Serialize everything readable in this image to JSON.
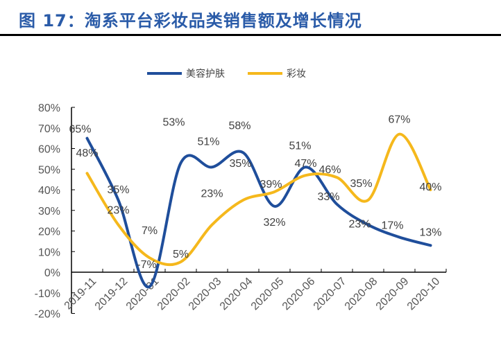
{
  "title": "图 17：淘系平台彩妆品类销售额及增长情况",
  "chart_data": {
    "type": "line",
    "title": "",
    "xlabel": "",
    "ylabel": "",
    "smooth": true,
    "categories": [
      "2019-11",
      "2019-12",
      "2020-01",
      "2020-02",
      "2020-03",
      "2020-04",
      "2020-05",
      "2020-06",
      "2020-07",
      "2020-08",
      "2020-09",
      "2020-10"
    ],
    "ylim": [
      -20,
      80
    ],
    "yticks": [
      "-20%",
      "-10%",
      "0%",
      "10%",
      "20%",
      "30%",
      "40%",
      "50%",
      "60%",
      "70%",
      "80%"
    ],
    "grid": false,
    "legend_position": "top",
    "series": [
      {
        "name": "美容护肤",
        "color": "#1f4e9b",
        "values": [
          65,
          35,
          -7,
          53,
          51,
          58,
          32,
          51,
          33,
          23,
          17,
          13
        ],
        "labels": [
          "65%",
          "35%",
          "-7%",
          "53%",
          "51%",
          "58%",
          "32%",
          "51%",
          "33%",
          "23%",
          "17%",
          "13%"
        ]
      },
      {
        "name": "彩妆",
        "color": "#f5b81c",
        "values": [
          48,
          23,
          7,
          5,
          23,
          35,
          39,
          47,
          46,
          35,
          67,
          40
        ],
        "labels": [
          "48%",
          "23%",
          "7%",
          "5%",
          "23%",
          "35%",
          "39%",
          "47%",
          "46%",
          "35%",
          "67%",
          "40%"
        ]
      }
    ]
  }
}
